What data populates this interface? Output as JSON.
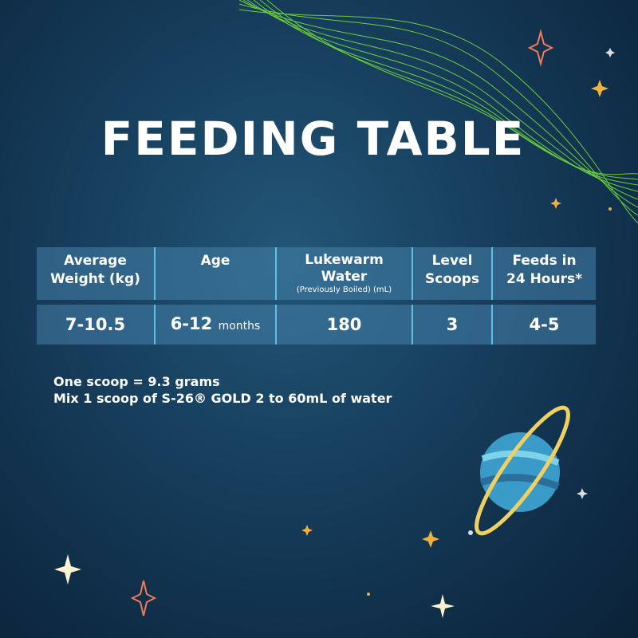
{
  "title": "FEEDING TABLE",
  "table": {
    "headers": [
      {
        "line1": "Average",
        "line2": "Weight (kg)"
      },
      {
        "line1": "Age"
      },
      {
        "line1": "Lukewarm",
        "line2": "Water",
        "note": "(Previously Boiled) (mL)"
      },
      {
        "line1": "Level",
        "line2": "Scoops"
      },
      {
        "line1": "Feeds in",
        "line2": "24 Hours*"
      }
    ],
    "row": {
      "weight": "7-10.5",
      "age": "6-12",
      "age_unit": "months",
      "water": "180",
      "scoops": "3",
      "feeds": "4-5"
    }
  },
  "notes": [
    "One scoop = 9.3 grams",
    "Mix 1 scoop of S-26® GOLD 2 to 60mL of water"
  ],
  "colors": {
    "background": "#173f5e",
    "wave": "#7be83a",
    "divider": "#5fc0e6",
    "planet_ring": "#f0d060",
    "planet": "#3a9ac8"
  }
}
